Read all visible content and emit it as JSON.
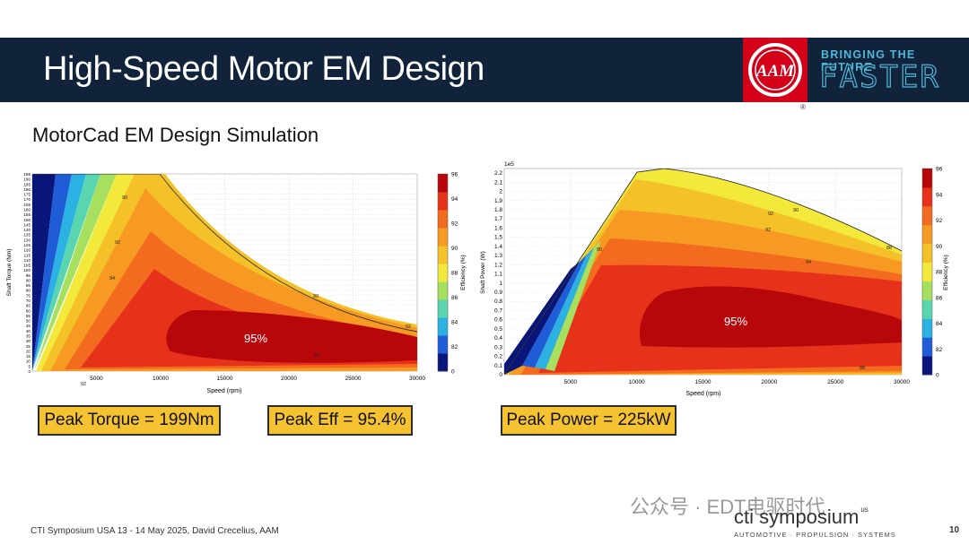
{
  "header": {
    "title": "High-Speed Motor EM Design",
    "logo_text": "AAM",
    "tagline_top": "BRINGING THE FUTURE",
    "tagline_bottom": "FASTER",
    "registered": "®"
  },
  "subtitle": "MotorCad EM Design Simulation",
  "chart_data": [
    {
      "type": "heatmap",
      "title": "",
      "xlabel": "Speed (rpm)",
      "ylabel": "Shaft Torque (Nm)",
      "colorbar_label": "Efficiency (%)",
      "x_ticks": [
        5000,
        10000,
        15000,
        20000,
        25000,
        30000
      ],
      "y_ticks": [
        0,
        5,
        10,
        15,
        20,
        25,
        30,
        35,
        40,
        45,
        50,
        55,
        60,
        65,
        70,
        75,
        80,
        85,
        90,
        95,
        100,
        105,
        110,
        115,
        120,
        125,
        130,
        135,
        140,
        145,
        150,
        155,
        160,
        165,
        170,
        175,
        180,
        185,
        190,
        195
      ],
      "xlim": [
        0,
        30000
      ],
      "ylim": [
        0,
        195
      ],
      "colorbar_ticks": [
        82,
        84,
        86,
        88,
        90,
        92,
        94,
        96
      ],
      "colorbar_range": [
        80,
        96
      ],
      "contour_labels": [
        "90",
        "92",
        "94",
        "90",
        "92",
        "92",
        "94"
      ],
      "annotation": "95%",
      "torque_envelope": [
        [
          0,
          199
        ],
        [
          10000,
          199
        ],
        [
          15000,
          130
        ],
        [
          20000,
          88
        ],
        [
          25000,
          66
        ],
        [
          30000,
          50
        ]
      ]
    },
    {
      "type": "heatmap",
      "title": "",
      "exponent_label": "1e5",
      "xlabel": "Speed (rpm)",
      "ylabel": "Shaft Power (W)",
      "colorbar_label": "Efficiency (%)",
      "x_ticks": [
        5000,
        10000,
        15000,
        20000,
        25000,
        30000
      ],
      "y_ticks": [
        0,
        0.1,
        0.2,
        0.3,
        0.4,
        0.5,
        0.6,
        0.7,
        0.8,
        0.9,
        1.0,
        1.1,
        1.2,
        1.3,
        1.4,
        1.5,
        1.6,
        1.7,
        1.8,
        1.9,
        2.0,
        2.1,
        2.2
      ],
      "xlim": [
        0,
        30000
      ],
      "ylim": [
        0,
        2.25
      ],
      "colorbar_ticks": [
        82,
        84,
        86,
        88,
        90,
        92,
        94,
        96
      ],
      "colorbar_range": [
        80,
        96
      ],
      "contour_labels": [
        "90",
        "92",
        "92",
        "90",
        "88",
        "94",
        "88"
      ],
      "annotation": "95%",
      "power_envelope": [
        [
          0,
          0
        ],
        [
          10000,
          2.1
        ],
        [
          11000,
          2.25
        ],
        [
          14000,
          2.25
        ],
        [
          20000,
          1.95
        ],
        [
          25000,
          1.6
        ],
        [
          30000,
          1.3
        ]
      ]
    }
  ],
  "badges": {
    "peak_torque": "Peak Torque = 199Nm",
    "peak_eff": "Peak Eff = 95.4%",
    "peak_power": "Peak Power = 225kW"
  },
  "footer": {
    "text": "CTI Symposium USA 13 - 14 May 2025, David Crecelius, AAM",
    "page": "10"
  },
  "watermark": "公众号 · EDT电驱时代",
  "cti_logo": {
    "name": "cti symposium",
    "us": "us",
    "sub": "AUTOMOTIVE · PROPULSION · SYSTEMS"
  },
  "colors": {
    "header_bg": "#10233a",
    "logo_red": "#d4001a",
    "accent_blue": "#4fb7d8",
    "badge_fill": "#f5c232"
  }
}
